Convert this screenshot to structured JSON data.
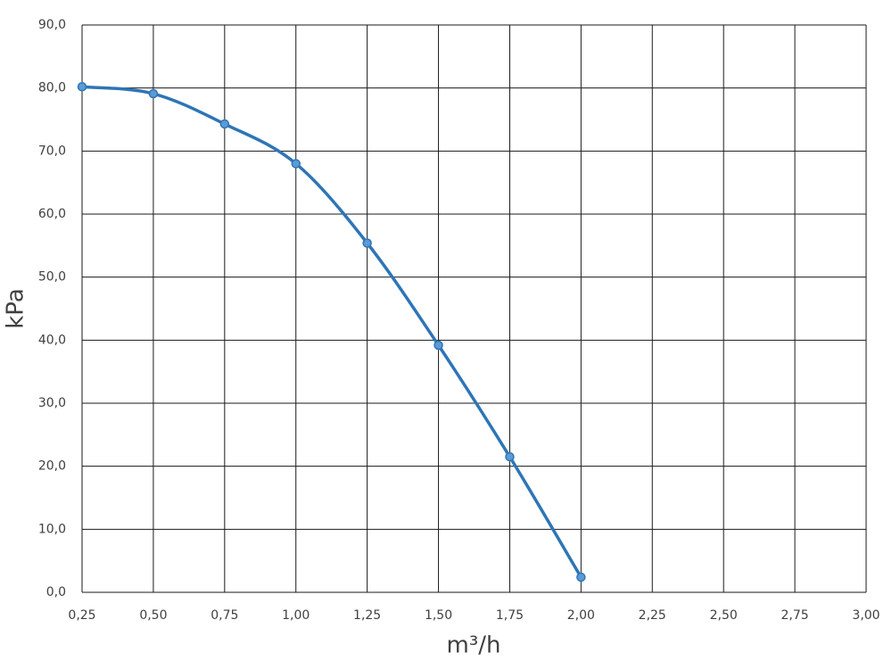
{
  "chart_data": {
    "type": "line",
    "x_label": "m³/h",
    "y_label": "kPa",
    "x": [
      0.25,
      0.5,
      0.75,
      1.0,
      1.25,
      1.5,
      1.75,
      2.0
    ],
    "series": [
      {
        "color": "#2e75b6",
        "values": [
          80.2,
          79.1,
          74.3,
          68.0,
          55.4,
          39.2,
          21.5,
          2.4
        ]
      }
    ],
    "xlim": [
      0.25,
      3.0
    ],
    "xticks": [
      {
        "value": 0.25,
        "label": "0,25"
      },
      {
        "value": 0.5,
        "label": "0,50"
      },
      {
        "value": 0.75,
        "label": "0,75"
      },
      {
        "value": 1.0,
        "label": "1,00"
      },
      {
        "value": 1.25,
        "label": "1,25"
      },
      {
        "value": 1.5,
        "label": "1,50"
      },
      {
        "value": 1.75,
        "label": "1,75"
      },
      {
        "value": 2.0,
        "label": "2,00"
      },
      {
        "value": 2.25,
        "label": "2,25"
      },
      {
        "value": 2.5,
        "label": "2,50"
      },
      {
        "value": 2.75,
        "label": "2,75"
      },
      {
        "value": 3.0,
        "label": "3,00"
      }
    ],
    "ylim": [
      0,
      90
    ],
    "yticks": [
      {
        "value": 0,
        "label": "0,0"
      },
      {
        "value": 10,
        "label": "10,0"
      },
      {
        "value": 20,
        "label": "20,0"
      },
      {
        "value": 30,
        "label": "30,0"
      },
      {
        "value": 40,
        "label": "40,0"
      },
      {
        "value": 50,
        "label": "50,0"
      },
      {
        "value": 60,
        "label": "60,0"
      },
      {
        "value": 70,
        "label": "70,0"
      },
      {
        "value": 80,
        "label": "80,0"
      },
      {
        "value": 90,
        "label": "90,0"
      }
    ],
    "grid": true
  }
}
